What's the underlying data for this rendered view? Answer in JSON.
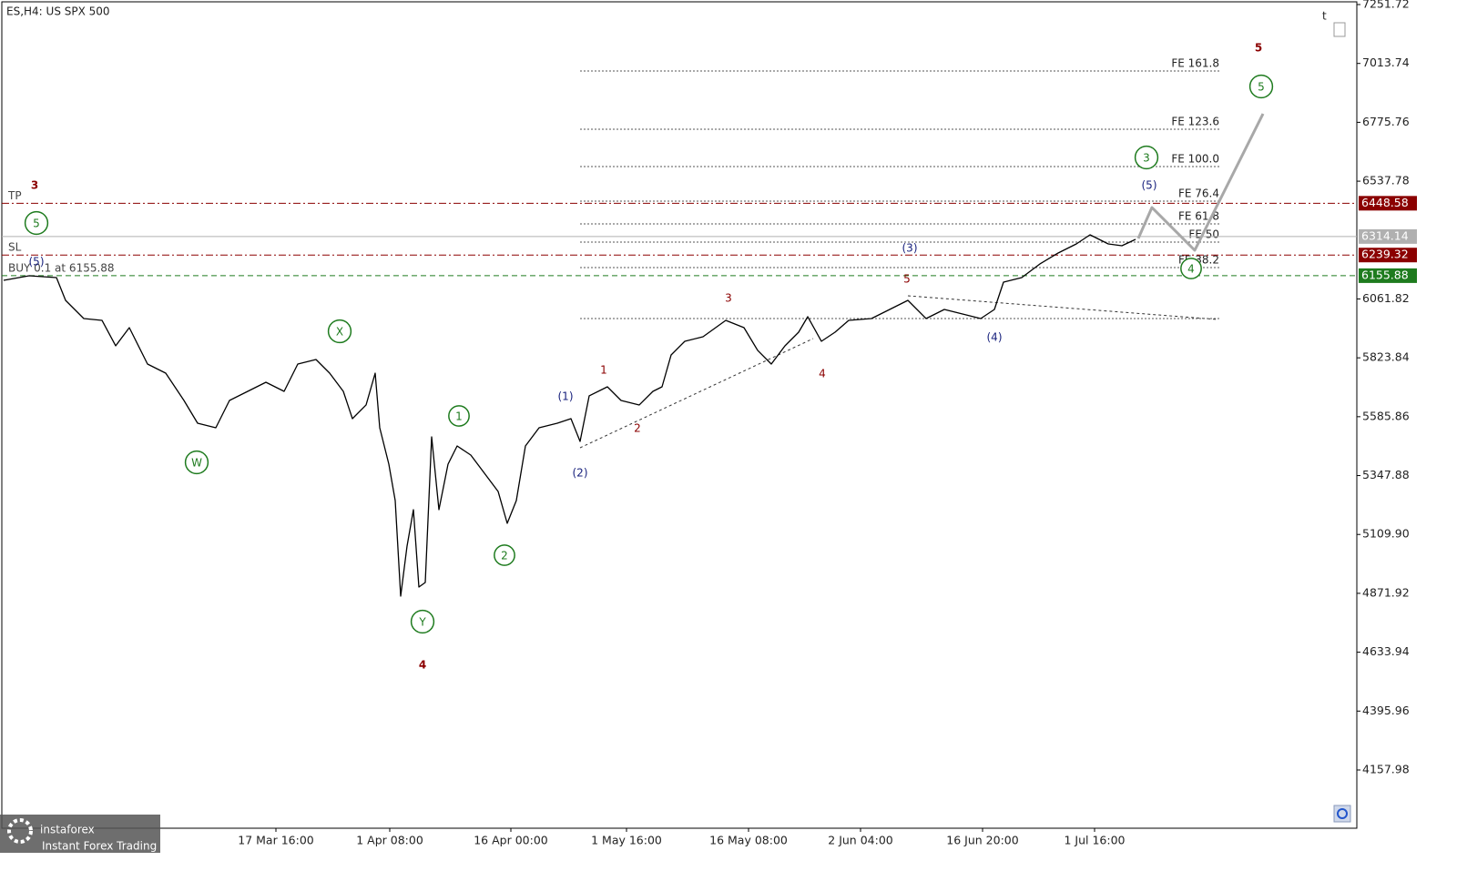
{
  "chart_data": {
    "type": "line",
    "title": "ES,H4: US SPX 500",
    "xlim": [
      0,
      372
    ],
    "ylim": [
      3922.5,
      7262.8
    ],
    "xticks": [
      {
        "value": 75.25,
        "label": "17 Mar 16:00"
      },
      {
        "value": 106.5,
        "label": "1 Apr 08:00"
      },
      {
        "value": 139.75,
        "label": "16 Apr 00:00"
      },
      {
        "value": 171.5,
        "label": "1 May 16:00"
      },
      {
        "value": 205,
        "label": "16 May 08:00"
      },
      {
        "value": 235.75,
        "label": "2 Jun 04:00"
      },
      {
        "value": 269.25,
        "label": "16 Jun 20:00"
      },
      {
        "value": 300,
        "label": "1 Jul 16:00"
      }
    ],
    "yticks": [
      7251.72,
      7013.74,
      6775.76,
      6537.78,
      6061.82,
      5823.84,
      5585.86,
      5347.88,
      {
        "value": 5109.9,
        "label": "5109.90"
      },
      4871.92,
      4633.94,
      4395.96,
      4157.98
    ],
    "series": [
      {
        "color": "#000000",
        "x": [
          0.5,
          7.5,
          15,
          17.5,
          22.5,
          27.5,
          31.25,
          35,
          40,
          45,
          50,
          53.75,
          58.75,
          62.5,
          67.5,
          72.5,
          77.5,
          81.25,
          86.25,
          90,
          93.75,
          96.25,
          100,
          102.5,
          103.75,
          106.25,
          108,
          109.5,
          111.25,
          113,
          114.5,
          116.25,
          118,
          120,
          122.5,
          125,
          128.75,
          132.5,
          136.25,
          138.75,
          141.25,
          143.75,
          147.5,
          152.5,
          156.25,
          158.75,
          161.25,
          166.25,
          170,
          175,
          178.75,
          181.25,
          183.75,
          187.5,
          192.5,
          198.75,
          203.75,
          207.5,
          211.25,
          215,
          218.75,
          221.25,
          225,
          228.75,
          232.5,
          238.75,
          243.75,
          248.75,
          253.75,
          258.75,
          263.75,
          268.75,
          272.5,
          275,
          280,
          285,
          290,
          295,
          298.75,
          303.75,
          307.5,
          311.25
        ],
        "values": [
          6137.1,
          6155.5,
          6148.2,
          6056.2,
          5982.6,
          5975.3,
          5872.3,
          5945.8,
          5798.7,
          5761.9,
          5651.5,
          5559.6,
          5541.2,
          5651.5,
          5688.3,
          5725.1,
          5688.3,
          5798.7,
          5817.1,
          5761.9,
          5688.3,
          5578.0,
          5633.2,
          5761.9,
          5541.2,
          5394.0,
          5246.9,
          4860.6,
          5063.0,
          5210.1,
          4897.4,
          4915.8,
          5504.4,
          5210.1,
          5394.0,
          5467.6,
          5430.8,
          5357.2,
          5283.7,
          5154.9,
          5246.9,
          5467.6,
          5541.2,
          5559.6,
          5578.0,
          5486.0,
          5670.0,
          5706.7,
          5651.5,
          5633.2,
          5688.3,
          5706.7,
          5835.5,
          5890.7,
          5909.0,
          5975.3,
          5945.8,
          5854.1,
          5798.7,
          5872.3,
          5927.4,
          5990.0,
          5890.7,
          5927.4,
          5975.3,
          5982.6,
          6019.4,
          6056.2,
          5982.6,
          6019.4,
          6001.0,
          5982.6,
          6019.4,
          6129.8,
          6148.2,
          6203.4,
          6247.5,
          6284.3,
          6321.1,
          6284.3,
          6276.9,
          6302.7
        ]
      },
      {
        "color": "#a8a8a8",
        "x": [
          312,
          315.75,
          327.5,
          346.25
        ],
        "values": [
          6306.3,
          6431.4,
          6258.5,
          6810.3
        ]
      }
    ],
    "levels": [
      {
        "name": "TP",
        "value": 6448.58,
        "color": "#8b0000",
        "style": "dashdot"
      },
      {
        "value": 6314.14,
        "color": "#b0b0b0",
        "style": "solid"
      },
      {
        "name": "SL",
        "value": 6239.32,
        "color": "#8b0000",
        "style": "dashdot"
      },
      {
        "name": "BUY 0.1 at 6155.88",
        "value": 6155.88,
        "color": "#1e7b1e",
        "style": "dashed"
      }
    ],
    "fibo": {
      "x": [
        158.75,
        334.25
      ],
      "color": "#555555",
      "levels": [
        {
          "label": "FE 161.8",
          "value": 6983.2
        },
        {
          "label": "FE 123.6",
          "value": 6747.8
        },
        {
          "label": "FE 100.0",
          "value": 6597.0
        },
        {
          "label": "FE 76.4",
          "value": 6457.2
        },
        {
          "label": "FE 61.8",
          "value": 6365.2
        },
        {
          "label": "FE 50",
          "value": 6291.6
        },
        {
          "label": "FE 38.2",
          "value": 6188.6
        },
        {
          "value": 5982.6
        }
      ]
    },
    "wave_labels": [
      {
        "text": "3",
        "color": "#8b0000"
      },
      {
        "text": "5",
        "color": "#1e7b1e"
      },
      {
        "text": "(5)",
        "color": "#1a237e"
      },
      {
        "text": "W",
        "color": "#1e7b1e"
      },
      {
        "text": "X",
        "color": "#1e7b1e"
      },
      {
        "text": "Y",
        "color": "#1e7b1e"
      },
      {
        "text": "4",
        "color": "#8b0000"
      },
      {
        "text": "1",
        "color": "#1e7b1e"
      },
      {
        "text": "2",
        "color": "#1e7b1e"
      },
      {
        "text": "(1)",
        "color": "#1a237e"
      },
      {
        "text": "(2)",
        "color": "#1a237e"
      },
      {
        "text": "1",
        "color": "#8b0000"
      },
      {
        "text": "2",
        "color": "#8b0000"
      },
      {
        "text": "3",
        "color": "#8b0000"
      },
      {
        "text": "4",
        "color": "#8b0000"
      },
      {
        "text": "5",
        "color": "#8b0000"
      },
      {
        "text": "(3)",
        "color": "#1a237e"
      },
      {
        "text": "(4)",
        "color": "#1a237e"
      },
      {
        "text": "3",
        "color": "#1e7b1e"
      },
      {
        "text": "(5)",
        "color": "#1a237e"
      },
      {
        "text": "4",
        "color": "#1e7b1e"
      },
      {
        "text": "5",
        "color": "#8b0000"
      },
      {
        "text": "5",
        "color": "#1e7b1e"
      }
    ],
    "logo": {
      "name": "instaforex",
      "tagline": "Instant Forex Trading"
    }
  }
}
